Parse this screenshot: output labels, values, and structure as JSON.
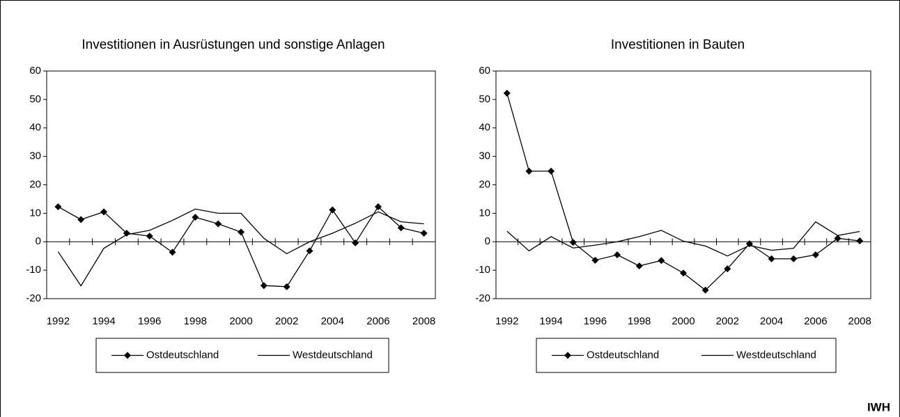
{
  "chart_data": [
    {
      "type": "line",
      "title": "Investitionen in Ausrüstungen und sonstige Anlagen",
      "categories": [
        "1992",
        null,
        "1994",
        null,
        "1996",
        null,
        "1998",
        null,
        "2000",
        null,
        "2002",
        null,
        "2004",
        null,
        "2006",
        null,
        "2008"
      ],
      "ylim": [
        -20,
        60
      ],
      "yticks": [
        -20,
        -10,
        0,
        10,
        20,
        30,
        40,
        50,
        60
      ],
      "grid": false,
      "legend": "bottom",
      "series": [
        {
          "name": "Ostdeutschland",
          "color": "#000000",
          "marker": "diamond",
          "values": [
            12.3,
            7.8,
            10.5,
            3,
            2,
            -3.7,
            8.6,
            6.3,
            3.4,
            -15.4,
            -15.8,
            -3.2,
            11.2,
            -0.4,
            12.3,
            4.9,
            3
          ]
        },
        {
          "name": "Westdeutschland",
          "color": "#000000",
          "marker": "none",
          "values": [
            -3.5,
            -15.5,
            -2.3,
            2.5,
            4,
            7.5,
            11.5,
            10,
            10,
            1.2,
            -4.2,
            0,
            3,
            6.5,
            10.5,
            7,
            6.3
          ]
        }
      ]
    },
    {
      "type": "line",
      "title": "Investitionen in Bauten",
      "categories": [
        "1992",
        null,
        "1994",
        null,
        "1996",
        null,
        "1998",
        null,
        "2000",
        null,
        "2002",
        null,
        "2004",
        null,
        "2006",
        null,
        "2008"
      ],
      "ylim": [
        -20,
        60
      ],
      "yticks": [
        -20,
        -10,
        0,
        10,
        20,
        30,
        40,
        50,
        60
      ],
      "grid": false,
      "legend": "bottom",
      "series": [
        {
          "name": "Ostdeutschland",
          "color": "#000000",
          "marker": "diamond",
          "values": [
            52.2,
            24.8,
            24.8,
            -0.2,
            -6.5,
            -4.6,
            -8.5,
            -6.6,
            -11,
            -17,
            -9.5,
            -0.7,
            -6,
            -6,
            -4.6,
            1.2,
            0.3
          ]
        },
        {
          "name": "Westdeutschland",
          "color": "#000000",
          "marker": "none",
          "values": [
            3.7,
            -3.2,
            1.8,
            -2.2,
            -1.2,
            0,
            1.8,
            4,
            0.2,
            -1.5,
            -5,
            -1.3,
            -3,
            -2.3,
            7,
            2.2,
            3.6
          ]
        }
      ]
    }
  ],
  "source": "IWH"
}
